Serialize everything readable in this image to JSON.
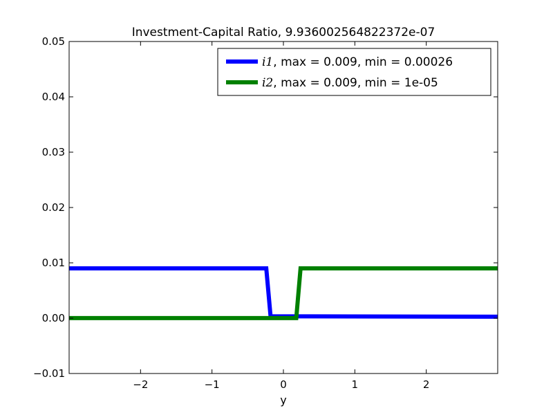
{
  "chart_data": {
    "type": "line",
    "title": "Investment-Capital Ratio, 9.936002564822372e-07",
    "xlabel": "y",
    "ylabel": "",
    "xlim": [
      -3,
      3
    ],
    "ylim": [
      -0.01,
      0.05
    ],
    "xticks": [
      -2,
      -1,
      0,
      1,
      2
    ],
    "xtick_labels": [
      "−2",
      "−1",
      "0",
      "1",
      "2"
    ],
    "yticks": [
      -0.01,
      0.0,
      0.01,
      0.02,
      0.03,
      0.04,
      0.05
    ],
    "ytick_labels": [
      "−0.01",
      "0.00",
      "0.01",
      "0.02",
      "0.03",
      "0.04",
      "0.05"
    ],
    "grid": false,
    "legend_position": "top-right",
    "series": [
      {
        "name": "i1",
        "legend_math": "i1",
        "legend_rest": ", max = 0.009, min = 0.00026",
        "color": "#0000ff",
        "x": [
          -3,
          -0.24,
          -0.18,
          3
        ],
        "y": [
          0.009,
          0.009,
          0.00035,
          0.00026
        ]
      },
      {
        "name": "i2",
        "legend_math": "i2",
        "legend_rest": ", max = 0.009, min = 1e-05",
        "color": "#008000",
        "x": [
          -3,
          0.18,
          0.24,
          3
        ],
        "y": [
          1e-05,
          1e-05,
          0.009,
          0.009
        ]
      }
    ]
  }
}
